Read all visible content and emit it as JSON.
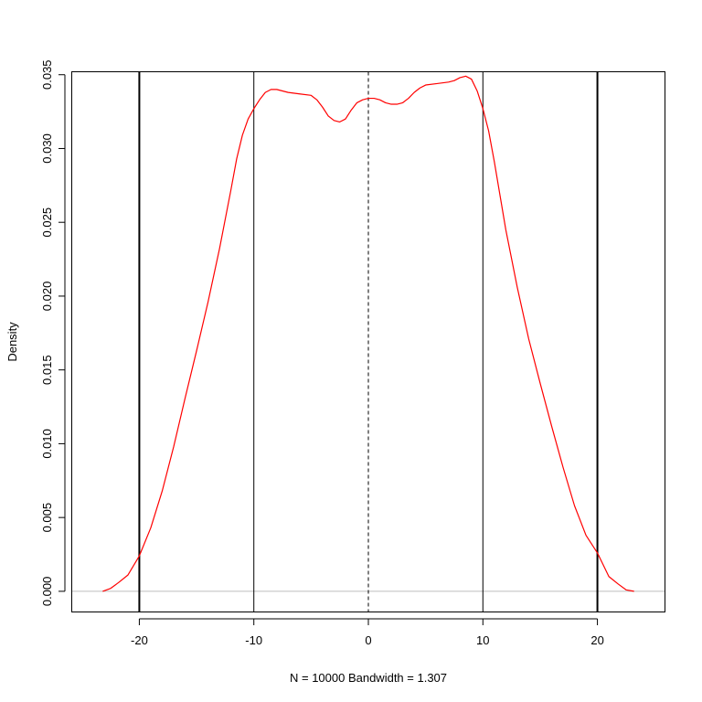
{
  "chart_data": {
    "type": "line",
    "title": "",
    "xlabel": "N = 10000   Bandwidth = 1.307",
    "ylabel": "Density",
    "xlim": [
      -25.9,
      25.9
    ],
    "ylim": [
      -0.0014,
      0.0352
    ],
    "x_ticks": [
      -20,
      -10,
      0,
      10,
      20
    ],
    "x_tick_labels": [
      "-20",
      "-10",
      "0",
      "10",
      "20"
    ],
    "y_ticks": [
      0.0,
      0.005,
      0.01,
      0.015,
      0.02,
      0.025,
      0.03,
      0.035
    ],
    "y_tick_labels": [
      "0.000",
      "0.005",
      "0.010",
      "0.015",
      "0.020",
      "0.025",
      "0.030",
      "0.035"
    ],
    "grid": false,
    "baseline": {
      "y": 0,
      "color": "#bebebe"
    },
    "vlines": [
      {
        "x": -20,
        "style": "solid",
        "weight": "thick",
        "color": "#000000"
      },
      {
        "x": -10,
        "style": "solid",
        "weight": "thin",
        "color": "#000000"
      },
      {
        "x": 0,
        "style": "dashed",
        "weight": "thin",
        "color": "#000000"
      },
      {
        "x": 10,
        "style": "solid",
        "weight": "thin",
        "color": "#000000"
      },
      {
        "x": 20,
        "style": "solid",
        "weight": "thick",
        "color": "#000000"
      }
    ],
    "series": [
      {
        "color": "#ff0000",
        "x": [
          -23.2,
          -22.5,
          -21.8,
          -21.0,
          -20.0,
          -19.0,
          -18.0,
          -17.0,
          -16.0,
          -15.0,
          -14.0,
          -13.0,
          -12.0,
          -11.5,
          -11.0,
          -10.5,
          -10.0,
          -9.5,
          -9.0,
          -8.5,
          -8.0,
          -7.5,
          -7.0,
          -6.0,
          -5.0,
          -4.5,
          -4.0,
          -3.5,
          -3.0,
          -2.5,
          -2.0,
          -1.5,
          -1.0,
          -0.5,
          0.0,
          0.5,
          1.0,
          1.5,
          2.0,
          2.5,
          3.0,
          3.5,
          4.0,
          4.5,
          5.0,
          6.0,
          7.0,
          7.5,
          8.0,
          8.5,
          9.0,
          9.5,
          10.0,
          10.5,
          11.0,
          11.5,
          12.0,
          13.0,
          14.0,
          15.0,
          16.0,
          17.0,
          18.0,
          19.0,
          20.0,
          21.0,
          21.8,
          22.5,
          23.2
        ],
        "values": [
          0.0,
          0.0002,
          0.0006,
          0.0011,
          0.0024,
          0.0043,
          0.0068,
          0.0098,
          0.0131,
          0.0163,
          0.0196,
          0.0232,
          0.0272,
          0.0293,
          0.0309,
          0.032,
          0.0327,
          0.0333,
          0.0338,
          0.034,
          0.034,
          0.0339,
          0.0338,
          0.0337,
          0.0336,
          0.0333,
          0.0328,
          0.0322,
          0.0319,
          0.0318,
          0.032,
          0.0326,
          0.0331,
          0.0333,
          0.0334,
          0.0334,
          0.0333,
          0.0331,
          0.033,
          0.033,
          0.0331,
          0.0334,
          0.0338,
          0.0341,
          0.0343,
          0.0344,
          0.0345,
          0.0346,
          0.0348,
          0.0349,
          0.0347,
          0.0339,
          0.0327,
          0.0312,
          0.0291,
          0.0268,
          0.0245,
          0.0206,
          0.0171,
          0.0141,
          0.0112,
          0.0084,
          0.0058,
          0.0038,
          0.0026,
          0.001,
          0.0005,
          0.0001,
          0.0
        ]
      }
    ]
  }
}
